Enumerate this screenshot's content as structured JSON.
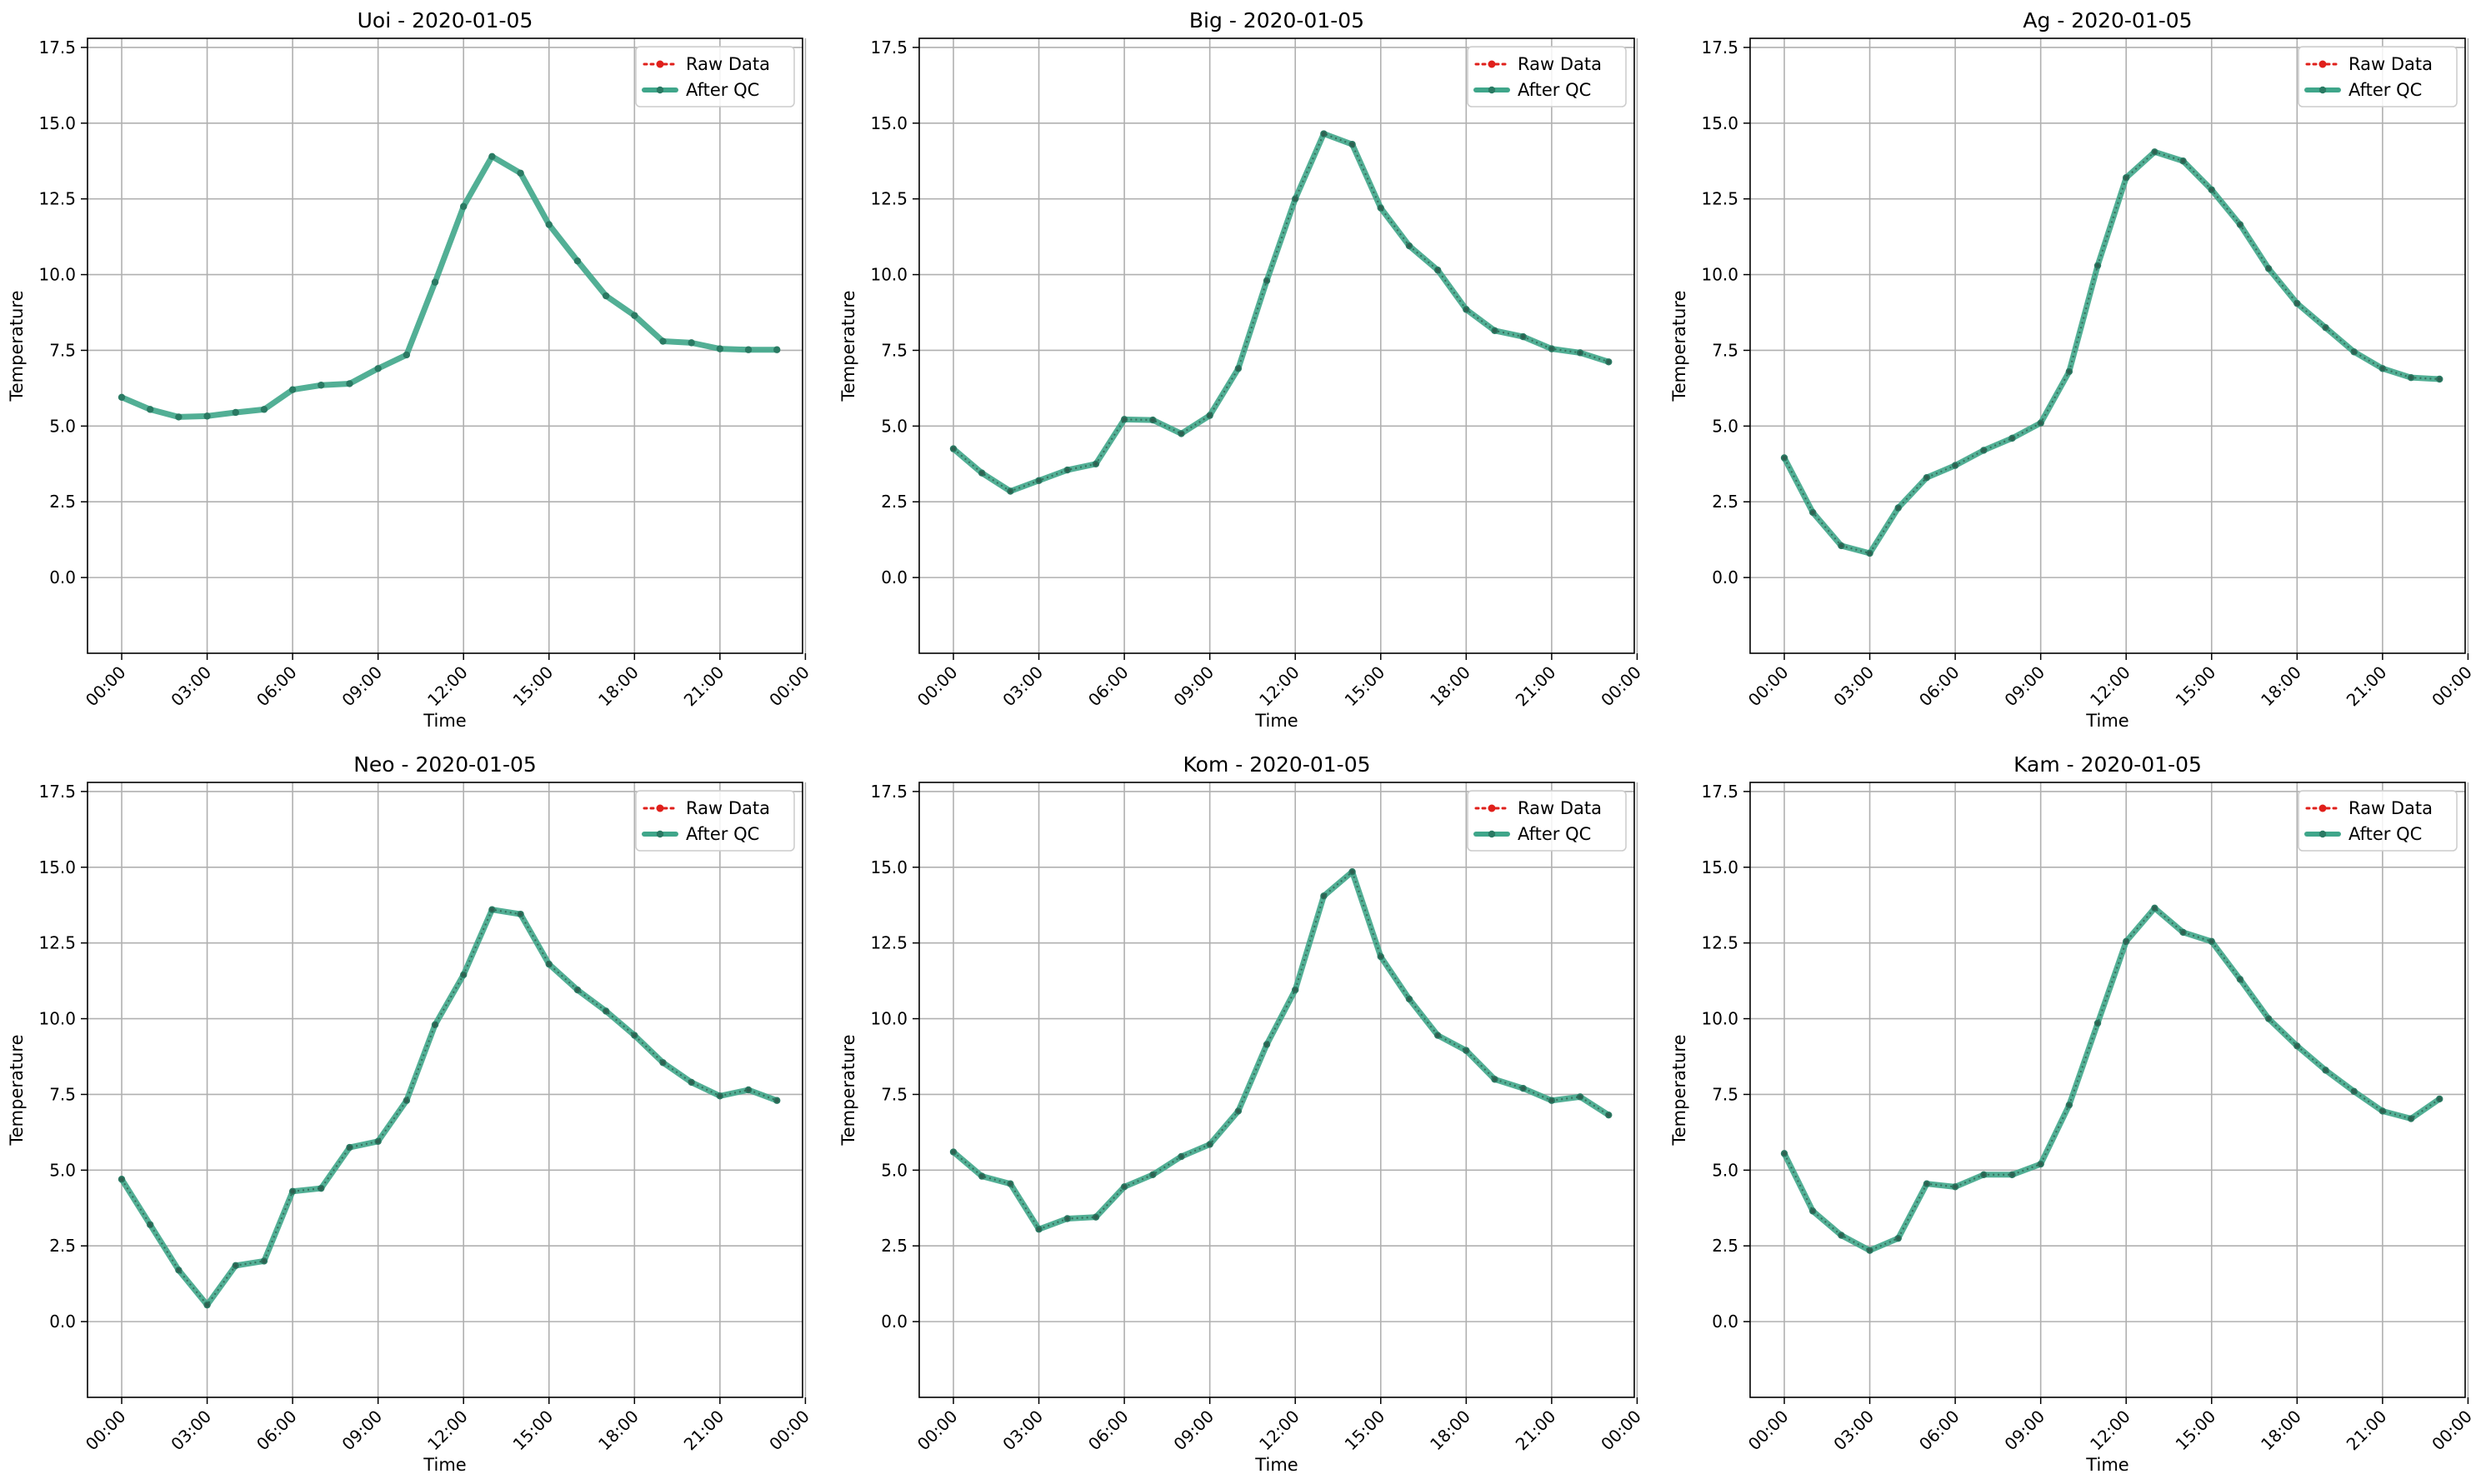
{
  "figure": {
    "colors": {
      "raw": "#e0201b",
      "qc_line": "#3fa68a",
      "qc_marker": "#2a7a63",
      "grid": "#b0b0b0",
      "axes": "#000000"
    }
  },
  "chart_data": [
    {
      "type": "line",
      "title": "Uoi - 2020-01-05",
      "xlabel": "Time",
      "ylabel": "Temperature",
      "xlim": [
        -1.2,
        23.9
      ],
      "ylim": [
        -2.5,
        17.8
      ],
      "grid": true,
      "legend_position": "top-right",
      "x_tick_labels": [
        "00:00",
        "03:00",
        "06:00",
        "09:00",
        "12:00",
        "15:00",
        "18:00",
        "21:00",
        "00:00"
      ],
      "y_tick_labels": [
        "0.0",
        "2.5",
        "5.0",
        "7.5",
        "10.0",
        "12.5",
        "15.0",
        "17.5"
      ],
      "x": [
        "00:00",
        "01:00",
        "02:00",
        "03:00",
        "04:00",
        "05:00",
        "06:00",
        "07:00",
        "08:00",
        "09:00",
        "10:00",
        "11:00",
        "12:00",
        "13:00",
        "14:00",
        "15:00",
        "16:00",
        "17:00",
        "18:00",
        "19:00",
        "20:00",
        "21:00",
        "22:00",
        "23:00"
      ],
      "series": [
        {
          "name": "Raw Data",
          "style": "dotted-marker",
          "values": [
            5.95,
            5.55,
            5.3,
            5.33,
            5.45,
            5.55,
            6.2,
            6.35,
            6.4,
            6.9,
            7.35,
            9.75,
            12.25,
            13.9,
            13.35,
            11.65,
            10.45,
            9.3,
            8.65,
            7.8,
            7.75,
            7.55,
            7.52,
            7.52
          ]
        },
        {
          "name": "After QC",
          "style": "solid-marker",
          "values": [
            5.95,
            5.55,
            5.3,
            5.33,
            5.45,
            5.55,
            6.2,
            6.35,
            6.4,
            6.9,
            7.35,
            9.75,
            12.25,
            13.9,
            13.35,
            11.65,
            10.45,
            9.3,
            8.65,
            7.8,
            7.75,
            7.55,
            7.52,
            7.52
          ]
        }
      ]
    },
    {
      "type": "line",
      "title": "Big - 2020-01-05",
      "xlabel": "Time",
      "ylabel": "Temperature",
      "xlim": [
        -1.2,
        23.9
      ],
      "ylim": [
        -2.5,
        17.8
      ],
      "grid": true,
      "legend_position": "top-right",
      "x_tick_labels": [
        "00:00",
        "03:00",
        "06:00",
        "09:00",
        "12:00",
        "15:00",
        "18:00",
        "21:00",
        "00:00"
      ],
      "y_tick_labels": [
        "0.0",
        "2.5",
        "5.0",
        "7.5",
        "10.0",
        "12.5",
        "15.0",
        "17.5"
      ],
      "x": [
        "00:00",
        "01:00",
        "02:00",
        "03:00",
        "04:00",
        "05:00",
        "06:00",
        "07:00",
        "08:00",
        "09:00",
        "10:00",
        "11:00",
        "12:00",
        "13:00",
        "14:00",
        "15:00",
        "16:00",
        "17:00",
        "18:00",
        "19:00",
        "20:00",
        "21:00",
        "22:00",
        "23:00"
      ],
      "series": [
        {
          "name": "Raw Data",
          "style": "dotted-marker",
          "values": [
            4.25,
            3.45,
            2.85,
            3.2,
            3.55,
            3.75,
            5.22,
            5.2,
            4.75,
            5.35,
            6.9,
            9.8,
            12.5,
            14.65,
            14.3,
            12.2,
            10.95,
            10.15,
            8.85,
            8.15,
            7.95,
            7.55,
            7.42,
            7.12
          ]
        },
        {
          "name": "After QC",
          "style": "solid-marker",
          "values": [
            4.25,
            3.45,
            2.85,
            3.2,
            3.55,
            3.75,
            5.22,
            5.2,
            4.75,
            5.35,
            6.9,
            9.8,
            12.5,
            14.65,
            14.3,
            12.2,
            10.95,
            10.15,
            8.85,
            8.15,
            7.95,
            7.55,
            7.42,
            7.12
          ]
        }
      ]
    },
    {
      "type": "line",
      "title": "Ag - 2020-01-05",
      "xlabel": "Time",
      "ylabel": "Temperature",
      "xlim": [
        -1.2,
        23.9
      ],
      "ylim": [
        -2.5,
        17.8
      ],
      "grid": true,
      "legend_position": "top-right",
      "x_tick_labels": [
        "00:00",
        "03:00",
        "06:00",
        "09:00",
        "12:00",
        "15:00",
        "18:00",
        "21:00",
        "00:00"
      ],
      "y_tick_labels": [
        "0.0",
        "2.5",
        "5.0",
        "7.5",
        "10.0",
        "12.5",
        "15.0",
        "17.5"
      ],
      "x": [
        "00:00",
        "01:00",
        "02:00",
        "03:00",
        "04:00",
        "05:00",
        "06:00",
        "07:00",
        "08:00",
        "09:00",
        "10:00",
        "11:00",
        "12:00",
        "13:00",
        "14:00",
        "15:00",
        "16:00",
        "17:00",
        "18:00",
        "19:00",
        "20:00",
        "21:00",
        "22:00",
        "23:00"
      ],
      "series": [
        {
          "name": "Raw Data",
          "style": "dotted-marker",
          "values": [
            3.95,
            2.15,
            1.05,
            0.8,
            2.3,
            3.3,
            3.7,
            4.2,
            4.6,
            5.1,
            6.8,
            10.3,
            13.2,
            14.05,
            13.75,
            12.8,
            11.65,
            10.2,
            9.05,
            8.25,
            7.45,
            6.9,
            6.6,
            6.55
          ]
        },
        {
          "name": "After QC",
          "style": "solid-marker",
          "values": [
            3.95,
            2.15,
            1.05,
            0.8,
            2.3,
            3.3,
            3.7,
            4.2,
            4.6,
            5.1,
            6.8,
            10.3,
            13.2,
            14.05,
            13.75,
            12.8,
            11.65,
            10.2,
            9.05,
            8.25,
            7.45,
            6.9,
            6.6,
            6.55
          ]
        }
      ]
    },
    {
      "type": "line",
      "title": "Neo - 2020-01-05",
      "xlabel": "Time",
      "ylabel": "Temperature",
      "xlim": [
        -1.2,
        23.9
      ],
      "ylim": [
        -2.5,
        17.8
      ],
      "grid": true,
      "legend_position": "top-right",
      "x_tick_labels": [
        "00:00",
        "03:00",
        "06:00",
        "09:00",
        "12:00",
        "15:00",
        "18:00",
        "21:00",
        "00:00"
      ],
      "y_tick_labels": [
        "0.0",
        "2.5",
        "5.0",
        "7.5",
        "10.0",
        "12.5",
        "15.0",
        "17.5"
      ],
      "x": [
        "00:00",
        "01:00",
        "02:00",
        "03:00",
        "04:00",
        "05:00",
        "06:00",
        "07:00",
        "08:00",
        "09:00",
        "10:00",
        "11:00",
        "12:00",
        "13:00",
        "14:00",
        "15:00",
        "16:00",
        "17:00",
        "18:00",
        "19:00",
        "20:00",
        "21:00",
        "22:00",
        "23:00"
      ],
      "series": [
        {
          "name": "Raw Data",
          "style": "dotted-marker",
          "values": [
            4.7,
            3.2,
            1.7,
            0.55,
            1.85,
            2.0,
            4.3,
            4.4,
            5.75,
            5.95,
            7.3,
            9.8,
            11.45,
            13.6,
            13.45,
            11.8,
            10.95,
            10.25,
            9.45,
            8.55,
            7.9,
            7.45,
            7.65,
            7.3
          ]
        },
        {
          "name": "After QC",
          "style": "solid-marker",
          "values": [
            4.7,
            3.2,
            1.7,
            0.55,
            1.85,
            2.0,
            4.3,
            4.4,
            5.75,
            5.95,
            7.3,
            9.8,
            11.45,
            13.6,
            13.45,
            11.8,
            10.95,
            10.25,
            9.45,
            8.55,
            7.9,
            7.45,
            7.65,
            7.3
          ]
        }
      ]
    },
    {
      "type": "line",
      "title": "Kom - 2020-01-05",
      "xlabel": "Time",
      "ylabel": "Temperature",
      "xlim": [
        -1.2,
        23.9
      ],
      "ylim": [
        -2.5,
        17.8
      ],
      "grid": true,
      "legend_position": "top-right",
      "x_tick_labels": [
        "00:00",
        "03:00",
        "06:00",
        "09:00",
        "12:00",
        "15:00",
        "18:00",
        "21:00",
        "00:00"
      ],
      "y_tick_labels": [
        "0.0",
        "2.5",
        "5.0",
        "7.5",
        "10.0",
        "12.5",
        "15.0",
        "17.5"
      ],
      "x": [
        "00:00",
        "01:00",
        "02:00",
        "03:00",
        "04:00",
        "05:00",
        "06:00",
        "07:00",
        "08:00",
        "09:00",
        "10:00",
        "11:00",
        "12:00",
        "13:00",
        "14:00",
        "15:00",
        "16:00",
        "17:00",
        "18:00",
        "19:00",
        "20:00",
        "21:00",
        "22:00",
        "23:00"
      ],
      "series": [
        {
          "name": "Raw Data",
          "style": "dotted-marker",
          "values": [
            5.6,
            4.8,
            4.55,
            3.05,
            3.4,
            3.45,
            4.45,
            4.85,
            5.45,
            5.85,
            6.95,
            9.15,
            10.95,
            14.05,
            14.85,
            12.05,
            10.65,
            9.45,
            8.95,
            8.0,
            7.7,
            7.3,
            7.42,
            6.82
          ]
        },
        {
          "name": "After QC",
          "style": "solid-marker",
          "values": [
            5.6,
            4.8,
            4.55,
            3.05,
            3.4,
            3.45,
            4.45,
            4.85,
            5.45,
            5.85,
            6.95,
            9.15,
            10.95,
            14.05,
            14.85,
            12.05,
            10.65,
            9.45,
            8.95,
            8.0,
            7.7,
            7.3,
            7.42,
            6.82
          ]
        }
      ]
    },
    {
      "type": "line",
      "title": "Kam - 2020-01-05",
      "xlabel": "Time",
      "ylabel": "Temperature",
      "xlim": [
        -1.2,
        23.9
      ],
      "ylim": [
        -2.5,
        17.8
      ],
      "grid": true,
      "legend_position": "top-right",
      "x_tick_labels": [
        "00:00",
        "03:00",
        "06:00",
        "09:00",
        "12:00",
        "15:00",
        "18:00",
        "21:00",
        "00:00"
      ],
      "y_tick_labels": [
        "0.0",
        "2.5",
        "5.0",
        "7.5",
        "10.0",
        "12.5",
        "15.0",
        "17.5"
      ],
      "x": [
        "00:00",
        "01:00",
        "02:00",
        "03:00",
        "04:00",
        "05:00",
        "06:00",
        "07:00",
        "08:00",
        "09:00",
        "10:00",
        "11:00",
        "12:00",
        "13:00",
        "14:00",
        "15:00",
        "16:00",
        "17:00",
        "18:00",
        "19:00",
        "20:00",
        "21:00",
        "22:00",
        "23:00"
      ],
      "series": [
        {
          "name": "Raw Data",
          "style": "dotted-marker",
          "values": [
            5.55,
            3.65,
            2.85,
            2.35,
            2.75,
            4.55,
            4.45,
            4.85,
            4.85,
            5.2,
            7.15,
            9.85,
            12.55,
            13.65,
            12.85,
            12.55,
            11.3,
            10.0,
            9.1,
            8.3,
            7.6,
            6.95,
            6.7,
            7.35
          ]
        },
        {
          "name": "After QC",
          "style": "solid-marker",
          "values": [
            5.55,
            3.65,
            2.85,
            2.35,
            2.75,
            4.55,
            4.45,
            4.85,
            4.85,
            5.2,
            7.15,
            9.85,
            12.55,
            13.65,
            12.85,
            12.55,
            11.3,
            10.0,
            9.1,
            8.3,
            7.6,
            6.95,
            6.7,
            7.35
          ]
        }
      ]
    }
  ]
}
